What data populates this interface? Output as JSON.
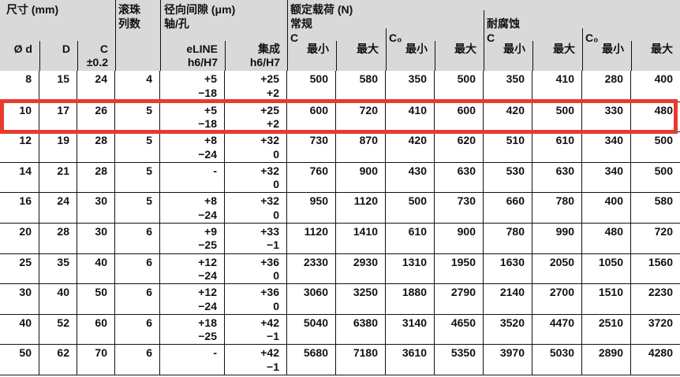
{
  "header": {
    "size_group": "尺寸 (mm)",
    "balls_group_l1": "滚珠",
    "balls_group_l2": "列数",
    "clearance_group_l1": "径向间隙 (μm)",
    "clearance_group_l2": "轴/孔",
    "load_group": "额定载荷 (N)",
    "normal": "常规",
    "corrosion": "耐腐蚀",
    "c": "C",
    "c0": "C₀",
    "col_d": "Ø d",
    "col_outer": "D",
    "col_c_l1": "C",
    "col_c_l2": "±0.2",
    "col_eline_l1": "eLINE",
    "col_eline_l2": "h6/H7",
    "col_integrated_l1": "集成",
    "col_integrated_l2": "h6/H7",
    "min": "最小",
    "max": "最大"
  },
  "columns": [
    "Ø d",
    "D",
    "C ±0.2",
    "滚珠列数",
    "径向间隙 eLINE h6/H7",
    "径向间隙 集成 h6/H7",
    "常规 C 最小",
    "常规 C 最大",
    "常规 C₀ 最小",
    "常规 C₀ 最大",
    "耐腐蚀 C 最小",
    "耐腐蚀 C 最大",
    "耐腐蚀 C₀ 最小",
    "耐腐蚀 C₀ 最大"
  ],
  "rows": [
    {
      "cells": [
        [
          "8"
        ],
        [
          "15"
        ],
        [
          "24"
        ],
        [
          "4"
        ],
        [
          "+5",
          "−18"
        ],
        [
          "+25",
          "+2"
        ],
        [
          "500"
        ],
        [
          "580"
        ],
        [
          "350"
        ],
        [
          "500"
        ],
        [
          "350"
        ],
        [
          "410"
        ],
        [
          "280"
        ],
        [
          "400"
        ]
      ]
    },
    {
      "cells": [
        [
          "10"
        ],
        [
          "17"
        ],
        [
          "26"
        ],
        [
          "5"
        ],
        [
          "+5",
          "−18"
        ],
        [
          "+25",
          "+2"
        ],
        [
          "600"
        ],
        [
          "720"
        ],
        [
          "410"
        ],
        [
          "600"
        ],
        [
          "420"
        ],
        [
          "500"
        ],
        [
          "330"
        ],
        [
          "480"
        ]
      ]
    },
    {
      "cells": [
        [
          "12"
        ],
        [
          "19"
        ],
        [
          "28"
        ],
        [
          "5"
        ],
        [
          "+8",
          "−24"
        ],
        [
          "+32",
          "0"
        ],
        [
          "730"
        ],
        [
          "870"
        ],
        [
          "420"
        ],
        [
          "620"
        ],
        [
          "510"
        ],
        [
          "610"
        ],
        [
          "340"
        ],
        [
          "500"
        ]
      ]
    },
    {
      "cells": [
        [
          "14"
        ],
        [
          "21"
        ],
        [
          "28"
        ],
        [
          "5"
        ],
        [
          "-"
        ],
        [
          "+32",
          "0"
        ],
        [
          "760"
        ],
        [
          "900"
        ],
        [
          "430"
        ],
        [
          "630"
        ],
        [
          "530"
        ],
        [
          "630"
        ],
        [
          "340"
        ],
        [
          "500"
        ]
      ]
    },
    {
      "cells": [
        [
          "16"
        ],
        [
          "24"
        ],
        [
          "30"
        ],
        [
          "5"
        ],
        [
          "+8",
          "−24"
        ],
        [
          "+32",
          "0"
        ],
        [
          "950"
        ],
        [
          "1120"
        ],
        [
          "500"
        ],
        [
          "730"
        ],
        [
          "660"
        ],
        [
          "780"
        ],
        [
          "400"
        ],
        [
          "580"
        ]
      ]
    },
    {
      "cells": [
        [
          "20"
        ],
        [
          "28"
        ],
        [
          "30"
        ],
        [
          "6"
        ],
        [
          "+9",
          "−25"
        ],
        [
          "+33",
          "−1"
        ],
        [
          "1120"
        ],
        [
          "1410"
        ],
        [
          "610"
        ],
        [
          "900"
        ],
        [
          "780"
        ],
        [
          "990"
        ],
        [
          "480"
        ],
        [
          "720"
        ]
      ]
    },
    {
      "cells": [
        [
          "25"
        ],
        [
          "35"
        ],
        [
          "40"
        ],
        [
          "6"
        ],
        [
          "+12",
          "−24"
        ],
        [
          "+36",
          "0"
        ],
        [
          "2330"
        ],
        [
          "2930"
        ],
        [
          "1310"
        ],
        [
          "1950"
        ],
        [
          "1630"
        ],
        [
          "2050"
        ],
        [
          "1050"
        ],
        [
          "1560"
        ]
      ]
    },
    {
      "cells": [
        [
          "30"
        ],
        [
          "40"
        ],
        [
          "50"
        ],
        [
          "6"
        ],
        [
          "+12",
          "−24"
        ],
        [
          "+36",
          "0"
        ],
        [
          "3060"
        ],
        [
          "3250"
        ],
        [
          "1880"
        ],
        [
          "2790"
        ],
        [
          "2140"
        ],
        [
          "2700"
        ],
        [
          "1510"
        ],
        [
          "2230"
        ]
      ]
    },
    {
      "cells": [
        [
          "40"
        ],
        [
          "52"
        ],
        [
          "60"
        ],
        [
          "6"
        ],
        [
          "+18",
          "−25"
        ],
        [
          "+42",
          "−1"
        ],
        [
          "5040"
        ],
        [
          "6380"
        ],
        [
          "3140"
        ],
        [
          "4650"
        ],
        [
          "3520"
        ],
        [
          "4470"
        ],
        [
          "2510"
        ],
        [
          "3720"
        ]
      ]
    },
    {
      "cells": [
        [
          "50"
        ],
        [
          "62"
        ],
        [
          "70"
        ],
        [
          "6"
        ],
        [
          "-"
        ],
        [
          "+42",
          "−1"
        ],
        [
          "5680"
        ],
        [
          "7180"
        ],
        [
          "3610"
        ],
        [
          "5350"
        ],
        [
          "3970"
        ],
        [
          "5030"
        ],
        [
          "2890"
        ],
        [
          "4280"
        ]
      ]
    }
  ],
  "highlight": {
    "row_index": 1
  },
  "colors": {
    "header_bg": "#d9d9d9",
    "grid_line": "#111111",
    "highlight_red": "#e83a2f",
    "row_bg": "#ffffff",
    "text": "#111111"
  }
}
